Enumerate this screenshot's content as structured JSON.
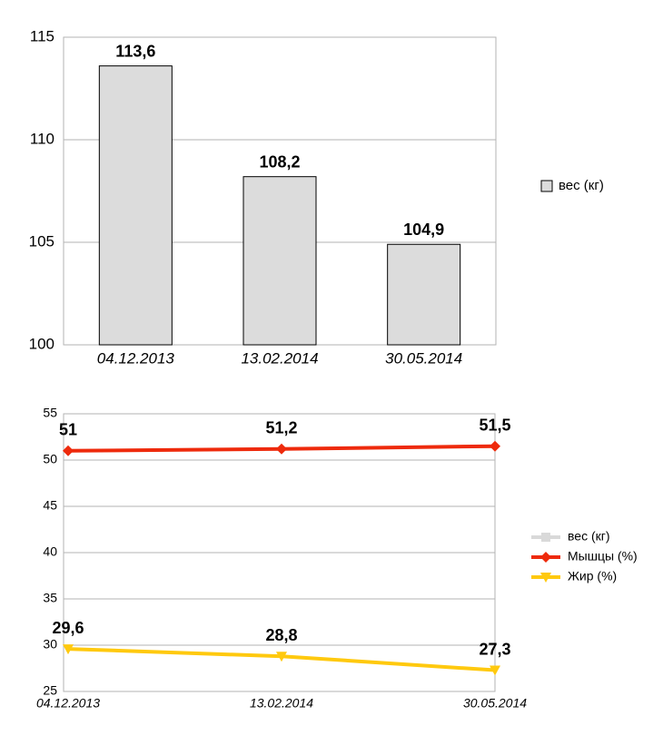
{
  "chart_data": [
    {
      "type": "bar",
      "categories": [
        "04.12.2013",
        "13.02.2014",
        "30.05.2014"
      ],
      "series": [
        {
          "name": "вес (кг)",
          "color": "#dcdcdc",
          "values": [
            113.6,
            108.2,
            104.9
          ],
          "value_labels": [
            "113,6",
            "108,2",
            "104,9"
          ]
        }
      ],
      "ylim": [
        100,
        115
      ],
      "yticks": [
        100,
        105,
        110,
        115
      ],
      "grid": true,
      "legend": "right"
    },
    {
      "type": "line",
      "categories": [
        "04.12.2013",
        "13.02.2014",
        "30.05.2014"
      ],
      "series": [
        {
          "name": "вес (кг)",
          "color": "#d9d9d9",
          "marker": "square",
          "values": [
            null,
            null,
            null
          ]
        },
        {
          "name": "Мышцы (%)",
          "color": "#ee2a0c",
          "label_color": "#dd1a0a",
          "marker": "diamond",
          "values": [
            51,
            51.2,
            51.5
          ],
          "value_labels": [
            "51",
            "51,2",
            "51,5"
          ]
        },
        {
          "name": "Жир (%)",
          "color": "#ffc90e",
          "label_color": "#b0a000",
          "marker": "triangle-down",
          "values": [
            29.6,
            28.8,
            27.3
          ],
          "value_labels": [
            "29,6",
            "28,8",
            "27,3"
          ]
        }
      ],
      "ylim": [
        25,
        55
      ],
      "yticks": [
        25,
        30,
        35,
        40,
        45,
        50,
        55
      ],
      "grid": true,
      "legend": "right"
    }
  ]
}
